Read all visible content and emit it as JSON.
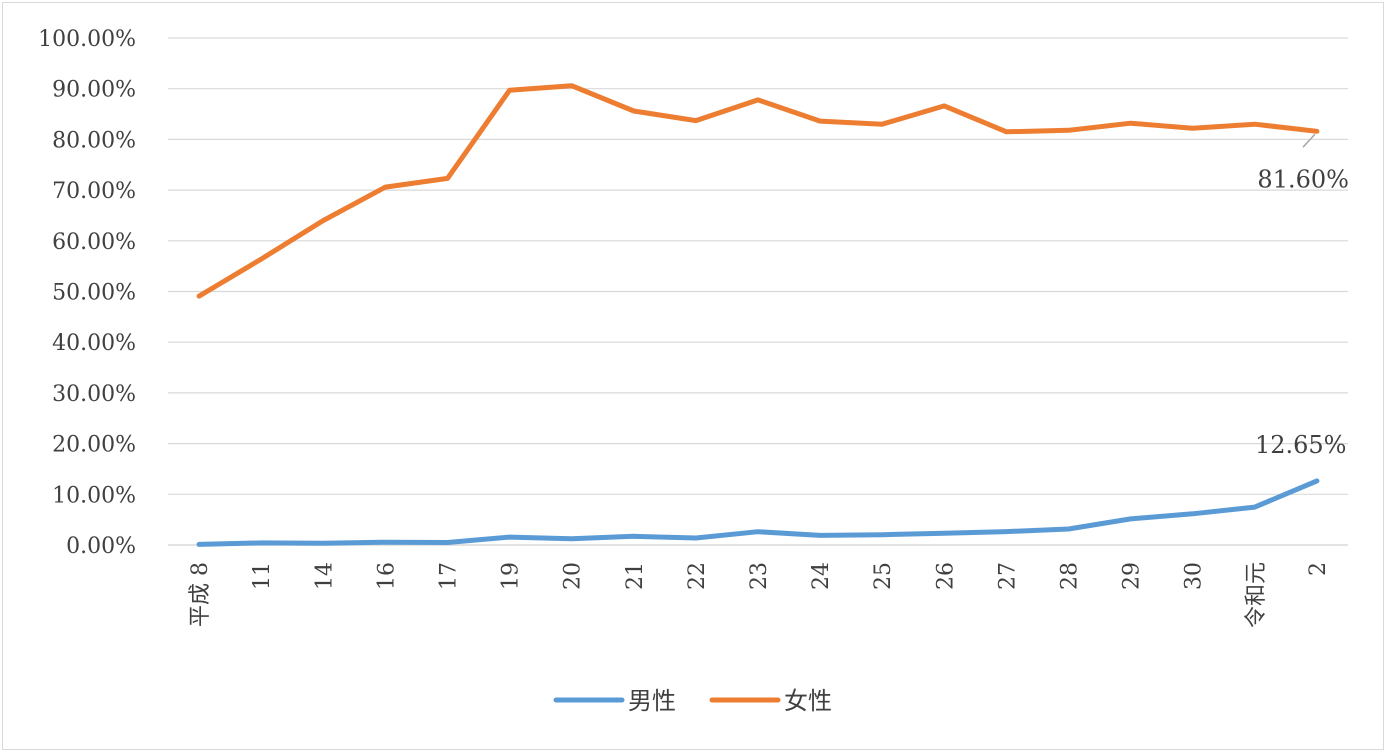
{
  "chart_data": {
    "type": "line",
    "categories": [
      "平成 8",
      "11",
      "14",
      "16",
      "17",
      "19",
      "20",
      "21",
      "22",
      "23",
      "24",
      "25",
      "26",
      "27",
      "28",
      "29",
      "30",
      "令和元",
      "2"
    ],
    "series": [
      {
        "name": "男性",
        "color": "#5B9BD5",
        "values": [
          0.12,
          0.42,
          0.33,
          0.56,
          0.5,
          1.56,
          1.23,
          1.72,
          1.38,
          2.63,
          1.89,
          2.03,
          2.3,
          2.65,
          3.16,
          5.14,
          6.16,
          7.48,
          12.65
        ]
      },
      {
        "name": "女性",
        "color": "#ED7D31",
        "values": [
          49.1,
          56.4,
          64.0,
          70.6,
          72.3,
          89.7,
          90.6,
          85.6,
          83.7,
          87.8,
          83.6,
          83.0,
          86.6,
          81.5,
          81.8,
          83.2,
          82.2,
          83.0,
          81.6
        ]
      }
    ],
    "y_ticks": [
      "0.00%",
      "10.00%",
      "20.00%",
      "30.00%",
      "40.00%",
      "50.00%",
      "60.00%",
      "70.00%",
      "80.00%",
      "90.00%",
      "100.00%"
    ],
    "ylim": [
      0,
      100
    ],
    "data_labels": [
      {
        "series": 1,
        "index": 18,
        "text": "81.60%"
      },
      {
        "series": 0,
        "index": 18,
        "text": "12.65%"
      }
    ],
    "grid": true,
    "legend_position": "bottom"
  }
}
